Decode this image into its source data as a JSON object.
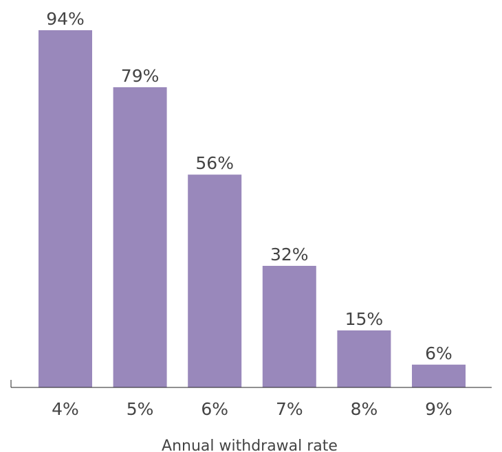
{
  "chart_data": {
    "type": "bar",
    "title": "",
    "xlabel": "Annual withdrawal rate",
    "ylabel": "",
    "categories": [
      "4%",
      "5%",
      "6%",
      "7%",
      "8%",
      "9%"
    ],
    "values": [
      94,
      79,
      56,
      32,
      15,
      6
    ],
    "value_labels": [
      "94%",
      "79%",
      "56%",
      "32%",
      "15%",
      "6%"
    ],
    "ylim": [
      0,
      100
    ],
    "grid": false,
    "legend": "none",
    "bar_color": "#9988bb"
  }
}
